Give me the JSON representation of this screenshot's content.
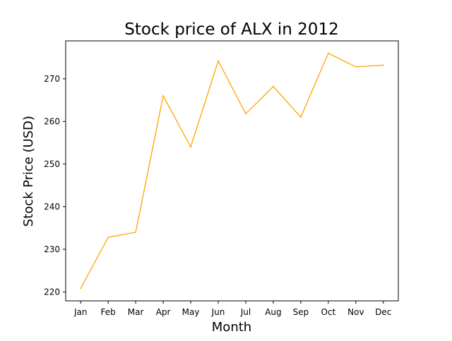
{
  "chart_data": {
    "type": "line",
    "title": "Stock price of ALX in 2012",
    "xlabel": "Month",
    "ylabel": "Stock Price (USD)",
    "categories": [
      "Jan",
      "Feb",
      "Mar",
      "Apr",
      "May",
      "Jun",
      "Jul",
      "Aug",
      "Sep",
      "Oct",
      "Nov",
      "Dec"
    ],
    "values": [
      220.8,
      232.8,
      234.0,
      266.0,
      254.0,
      274.2,
      261.8,
      268.2,
      261.0,
      276.0,
      272.8,
      273.2
    ],
    "ylim": [
      217.9,
      278.9
    ],
    "yticks": [
      220,
      230,
      240,
      250,
      260,
      270
    ],
    "grid": false,
    "line_color": "#ffa500"
  }
}
